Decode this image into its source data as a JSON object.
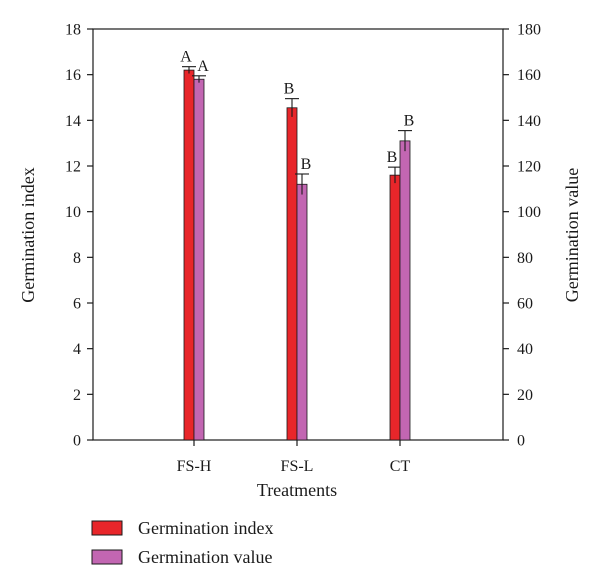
{
  "chart_data": {
    "type": "bar",
    "categories": [
      "FS-H",
      "FS-L",
      "CT"
    ],
    "xlabel": "Treatments",
    "ylabel": "Germination index",
    "y2label": "Germination value",
    "ylim": [
      0,
      18
    ],
    "y2lim": [
      0,
      180
    ],
    "yticks": [
      0,
      2,
      4,
      6,
      8,
      10,
      12,
      14,
      16,
      18
    ],
    "y2ticks": [
      0,
      20,
      40,
      60,
      80,
      100,
      120,
      140,
      160,
      180
    ],
    "grid": false,
    "legend_position": "bottom-left",
    "series": [
      {
        "name": "Germination index",
        "axis": "left",
        "color": "#e8262a",
        "values": [
          16.2,
          14.55,
          11.6
        ],
        "errors": [
          0.15,
          0.4,
          0.35
        ],
        "labels": [
          "A",
          "B",
          "B"
        ]
      },
      {
        "name": "Germination value",
        "axis": "right",
        "color": "#c266b2",
        "values": [
          158,
          112,
          131
        ],
        "errors": [
          1.5,
          4.5,
          4.5
        ],
        "labels": [
          "A",
          "B",
          "B"
        ]
      }
    ]
  }
}
